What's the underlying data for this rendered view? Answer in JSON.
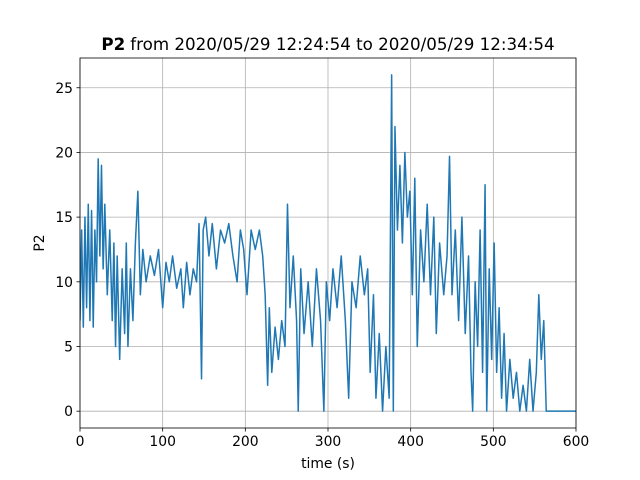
{
  "chart_data": {
    "type": "line",
    "title": [
      "P2",
      "from 2020/05/29 12:24:54 to 2020/05/29 12:34:54"
    ],
    "xlabel": "time (s)",
    "ylabel": "P2",
    "color": "#1f77b4",
    "grid": true,
    "xlim": [
      0,
      600
    ],
    "xticks": [
      0,
      100,
      200,
      300,
      400,
      500,
      600
    ],
    "ylim": [
      -1.3,
      27.3
    ],
    "yticks": [
      0,
      5,
      10,
      15,
      20,
      25
    ],
    "x": [
      0,
      2,
      4,
      6,
      8,
      10,
      12,
      14,
      16,
      18,
      20,
      22,
      24,
      26,
      28,
      30,
      33,
      36,
      39,
      41,
      43,
      45,
      48,
      51,
      54,
      56,
      58,
      61,
      64,
      67,
      70,
      73,
      76,
      80,
      85,
      90,
      95,
      100,
      104,
      108,
      112,
      117,
      122,
      125,
      129,
      133,
      137,
      141,
      144,
      147,
      149,
      152,
      156,
      160,
      165,
      170,
      175,
      180,
      185,
      190,
      194,
      198,
      202,
      207,
      212,
      217,
      221,
      224,
      227,
      229,
      232,
      236,
      240,
      244,
      248,
      251,
      254,
      258,
      262,
      264,
      267,
      271,
      276,
      281,
      286,
      291,
      295,
      298,
      302,
      306,
      311,
      316,
      321,
      325,
      329,
      334,
      339,
      344,
      348,
      351,
      355,
      358,
      362,
      366,
      370,
      374,
      377,
      379,
      381,
      384,
      387,
      390,
      393,
      396,
      399,
      402,
      405,
      408,
      412,
      416,
      420,
      424,
      428,
      431,
      435,
      440,
      444,
      447,
      450,
      454,
      458,
      462,
      466,
      470,
      473,
      475,
      478,
      481,
      484,
      487,
      490,
      492,
      495,
      498,
      501,
      504,
      507,
      510,
      513,
      516,
      520,
      524,
      528,
      532,
      536,
      540,
      544,
      548,
      552,
      555,
      558,
      561,
      564,
      567,
      580,
      600
    ],
    "values": [
      7,
      14,
      6.5,
      15,
      8,
      16,
      7,
      15.5,
      6.5,
      14,
      10,
      19.5,
      12,
      19,
      11,
      16,
      9,
      14,
      7,
      13,
      5,
      12,
      4,
      11,
      6,
      13,
      5,
      11,
      7,
      13,
      17,
      9,
      12.5,
      10,
      12,
      10.5,
      12.5,
      8,
      11.5,
      10,
      12,
      9.5,
      11,
      8,
      11.5,
      9,
      11,
      10,
      14.5,
      2.5,
      14,
      15,
      12,
      14.5,
      11,
      14,
      13,
      14.5,
      12,
      10,
      14,
      12.5,
      9,
      14,
      12.5,
      14,
      12,
      9,
      2,
      8,
      3,
      6.5,
      4,
      7,
      5,
      16,
      8,
      12,
      7,
      0,
      11,
      6,
      10,
      5,
      11,
      7,
      0,
      10,
      7,
      11,
      8,
      12,
      7,
      1,
      10,
      8,
      12,
      9,
      11,
      3,
      9,
      1,
      6,
      0,
      5,
      1,
      26,
      0,
      22,
      14,
      19,
      13,
      20,
      15,
      17,
      9,
      18,
      5,
      14,
      10,
      16,
      9,
      15,
      6,
      13,
      9,
      12,
      19.7,
      9,
      14,
      7,
      15,
      6,
      12,
      3,
      0,
      10,
      5,
      14,
      3,
      17.5,
      0,
      11,
      4,
      13,
      3,
      8,
      1,
      6,
      0,
      4,
      1,
      3,
      0,
      2,
      0,
      4,
      0,
      3,
      9,
      4,
      7,
      0,
      0,
      0,
      0
    ]
  }
}
